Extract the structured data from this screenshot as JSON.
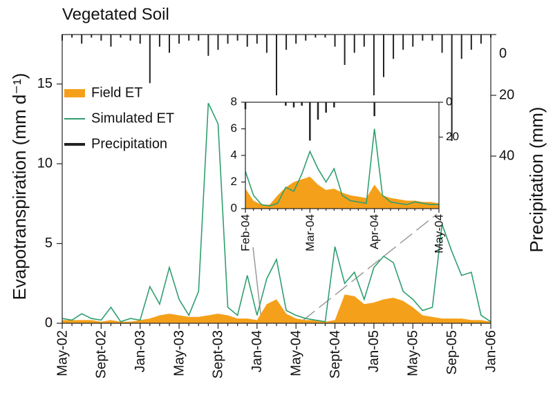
{
  "chart_data": [
    {
      "type": "combo",
      "title": "Vegetated Soil",
      "y_label": "Evapotranspiration (mm d⁻¹)",
      "y2_label": "Precipitation (mm)",
      "categories": [
        "May-02",
        null,
        null,
        null,
        "Sept-02",
        null,
        null,
        null,
        "Jan-03",
        null,
        null,
        null,
        "May-03",
        null,
        null,
        null,
        "Sept-03",
        null,
        null,
        null,
        "Jan-04",
        null,
        null,
        null,
        "May-04",
        null,
        null,
        null,
        "Sept-04",
        null,
        null,
        null,
        "Jan-05",
        null,
        null,
        null,
        "May-05",
        null,
        null,
        null,
        "Sep-05",
        null,
        null,
        null,
        "Jan-06"
      ],
      "series": [
        {
          "name": "Field ET",
          "type": "area",
          "color": "#f5a01a",
          "values": [
            0.2,
            0.2,
            0.2,
            0.2,
            0.1,
            0.2,
            0.1,
            0.1,
            0.2,
            0.3,
            0.5,
            0.6,
            0.5,
            0.4,
            0.4,
            0.5,
            0.6,
            0.5,
            0.3,
            0.3,
            0.2,
            1.2,
            1.5,
            0.6,
            0.3,
            0.2,
            0.2,
            0.1,
            0.2,
            1.8,
            1.7,
            1.2,
            1.3,
            1.5,
            1.6,
            1.4,
            1.0,
            0.5,
            0.4,
            0.3,
            0.3,
            0.3,
            0.2,
            0.2,
            0.1
          ]
        },
        {
          "name": "Simulated ET",
          "type": "line",
          "color": "#2e9e6e",
          "values": [
            0.3,
            0.2,
            0.6,
            0.3,
            0.2,
            1.0,
            0.1,
            0.3,
            0.2,
            2.3,
            1.2,
            3.5,
            1.5,
            0.5,
            2.0,
            13.8,
            12.5,
            1.0,
            0.5,
            3.0,
            0.5,
            2.8,
            4.0,
            0.8,
            0.5,
            0.3,
            0.2,
            0.1,
            4.8,
            2.5,
            3.2,
            1.5,
            3.5,
            4.2,
            3.8,
            2.0,
            1.5,
            0.8,
            1.0,
            6.2,
            4.5,
            3.0,
            3.2,
            0.5,
            0.1
          ]
        },
        {
          "name": "Precipitation",
          "type": "bar",
          "axis": "y2",
          "color": "#222222",
          "values": [
            2,
            1,
            3,
            1,
            2,
            4,
            1,
            2,
            3,
            16,
            4,
            6,
            3,
            2,
            2,
            7,
            5,
            3,
            2,
            4,
            3,
            6,
            20,
            5,
            3,
            2,
            1,
            1,
            4,
            10,
            6,
            4,
            20,
            14,
            8,
            5,
            4,
            2,
            2,
            6,
            35,
            8,
            5,
            3,
            1
          ]
        }
      ],
      "ylim": [
        0,
        18.1
      ],
      "yticks": [
        0,
        5,
        10,
        15
      ],
      "y2lim": [
        0,
        95
      ],
      "y2ticks": [
        0,
        20,
        40
      ],
      "y2_inverted": true,
      "legend": "upper left"
    },
    {
      "type": "combo",
      "categories": [
        "Feb-04",
        null,
        null,
        null,
        null,
        null,
        null,
        null,
        "Mar-04",
        null,
        null,
        null,
        null,
        null,
        null,
        null,
        "Apr-04",
        null,
        null,
        null,
        null,
        null,
        null,
        null,
        "May-04"
      ],
      "series": [
        {
          "name": "Field ET",
          "type": "area",
          "color": "#f5a01a",
          "values": [
            1.5,
            0.6,
            0.3,
            0.3,
            1.0,
            1.6,
            2.0,
            2.2,
            2.4,
            1.8,
            1.4,
            1.5,
            1.2,
            1.0,
            0.9,
            0.8,
            1.8,
            1.0,
            0.8,
            0.7,
            0.6,
            0.6,
            0.5,
            0.5,
            0.4
          ]
        },
        {
          "name": "Simulated ET",
          "type": "line",
          "color": "#2e9e6e",
          "values": [
            2.8,
            1.0,
            0.3,
            0.2,
            0.4,
            1.6,
            1.3,
            2.6,
            4.3,
            3.0,
            2.0,
            3.0,
            1.0,
            0.6,
            0.5,
            0.4,
            6.0,
            1.0,
            0.5,
            0.4,
            0.3,
            0.5,
            0.4,
            0.3,
            0.3
          ]
        },
        {
          "name": "Precipitation",
          "type": "bar",
          "axis": "y2",
          "color": "#222222",
          "values": [
            4,
            0,
            0,
            0,
            0,
            2,
            3,
            2,
            22,
            10,
            6,
            3,
            0,
            0,
            0,
            0,
            8,
            0,
            0,
            0,
            0,
            0,
            0,
            0,
            0
          ]
        }
      ],
      "ylim": [
        0,
        8
      ],
      "yticks": [
        0,
        2,
        4,
        6,
        8
      ],
      "y2lim": [
        0,
        61
      ],
      "y2ticks": [
        0,
        20
      ],
      "y2_inverted": true
    }
  ]
}
